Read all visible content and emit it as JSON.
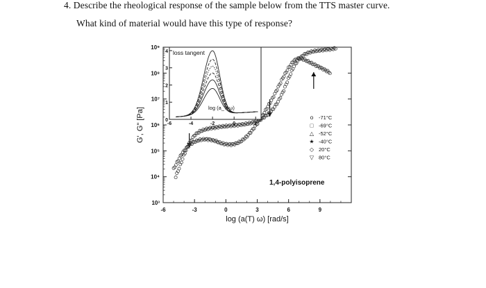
{
  "question": {
    "line1": "4. Describe the rheological response of the sample below from the TTS master curve.",
    "line2": "What kind of material would have this type of response?"
  },
  "chart_data": [
    {
      "type": "scatter",
      "title": "",
      "xlabel": "log (a(T) ω) [rad/s]",
      "ylabel": "G', G\" [Pa]",
      "xlim": [
        -6,
        12
      ],
      "ylim": [
        3,
        9
      ],
      "y_scale": "log",
      "xticks": [
        "-6",
        "-3",
        "0",
        "3",
        "6",
        "9"
      ],
      "yticks": [
        "10³",
        "10⁴",
        "10⁵",
        "10⁶",
        "10⁷",
        "10⁸",
        "10⁹"
      ],
      "annotation": "1,4-polyisoprene",
      "legend_position": "right",
      "legend": [
        {
          "marker": "o",
          "label": "-71°C"
        },
        {
          "marker": "□",
          "label": "-69°C"
        },
        {
          "marker": "△",
          "label": "-52°C"
        },
        {
          "marker": "★",
          "label": "-40°C"
        },
        {
          "marker": "◇",
          "label": "20°C"
        },
        {
          "marker": "▽",
          "label": "80°C"
        }
      ],
      "series": [
        {
          "x": [
            -4.8,
            -4.4,
            -4.0,
            -3.5,
            -3.0,
            -2.5,
            -2.0,
            -1.5,
            -1.0,
            -0.5,
            0.0,
            0.5,
            1.0,
            1.5,
            2.0,
            2.5,
            3.0,
            3.5,
            4.0,
            4.5,
            5.0,
            5.5,
            6.0,
            6.5,
            7.0,
            7.5,
            8.0,
            8.5,
            9.0,
            9.5,
            10.0,
            10.5
          ],
          "y": [
            4.0,
            4.4,
            4.85,
            5.3,
            5.6,
            5.75,
            5.82,
            5.87,
            5.9,
            5.93,
            5.95,
            5.97,
            5.99,
            6.01,
            6.04,
            6.08,
            6.15,
            6.25,
            6.4,
            6.6,
            6.9,
            7.3,
            7.8,
            8.25,
            8.55,
            8.72,
            8.8,
            8.85,
            8.88,
            8.9,
            8.92,
            8.95
          ]
        },
        {
          "x": [
            -5.0,
            -4.6,
            -4.2,
            -3.8,
            -3.4,
            -3.0,
            -2.5,
            -2.0,
            -1.5,
            -1.0,
            -0.5,
            0.0,
            0.5,
            1.0,
            1.5,
            2.0,
            2.5,
            3.0,
            3.5,
            4.0,
            4.5,
            5.0,
            5.5,
            6.0,
            6.5,
            7.0,
            7.5,
            8.0,
            8.5,
            9.0,
            9.5,
            10.0
          ],
          "y": [
            4.3,
            4.6,
            4.9,
            5.1,
            5.25,
            5.35,
            5.42,
            5.45,
            5.43,
            5.38,
            5.3,
            5.25,
            5.24,
            5.28,
            5.38,
            5.55,
            5.78,
            6.05,
            6.35,
            6.7,
            7.05,
            7.45,
            7.85,
            8.2,
            8.48,
            8.58,
            8.52,
            8.42,
            8.32,
            8.22,
            8.12,
            8.0
          ]
        }
      ]
    },
    {
      "type": "line",
      "title": "loss tangent",
      "xlabel": "log (a_T ω)",
      "ylabel": "",
      "xlim": [
        -6,
        2.5
      ],
      "ylim": [
        0,
        4.2
      ],
      "xticks": [
        "-6",
        "-4",
        "-2",
        "0",
        "2"
      ],
      "yticks": [
        "0",
        "1",
        "2",
        "3",
        "4"
      ],
      "peak_x": -2.0,
      "series": [
        {
          "peak": 4.0,
          "style": "solid"
        },
        {
          "peak": 3.5,
          "style": "dashed"
        },
        {
          "peak": 3.1,
          "style": "dotted"
        },
        {
          "peak": 2.7,
          "style": "dashed"
        },
        {
          "peak": 2.3,
          "style": "solid"
        },
        {
          "peak": 1.8,
          "style": "solid"
        }
      ]
    }
  ]
}
